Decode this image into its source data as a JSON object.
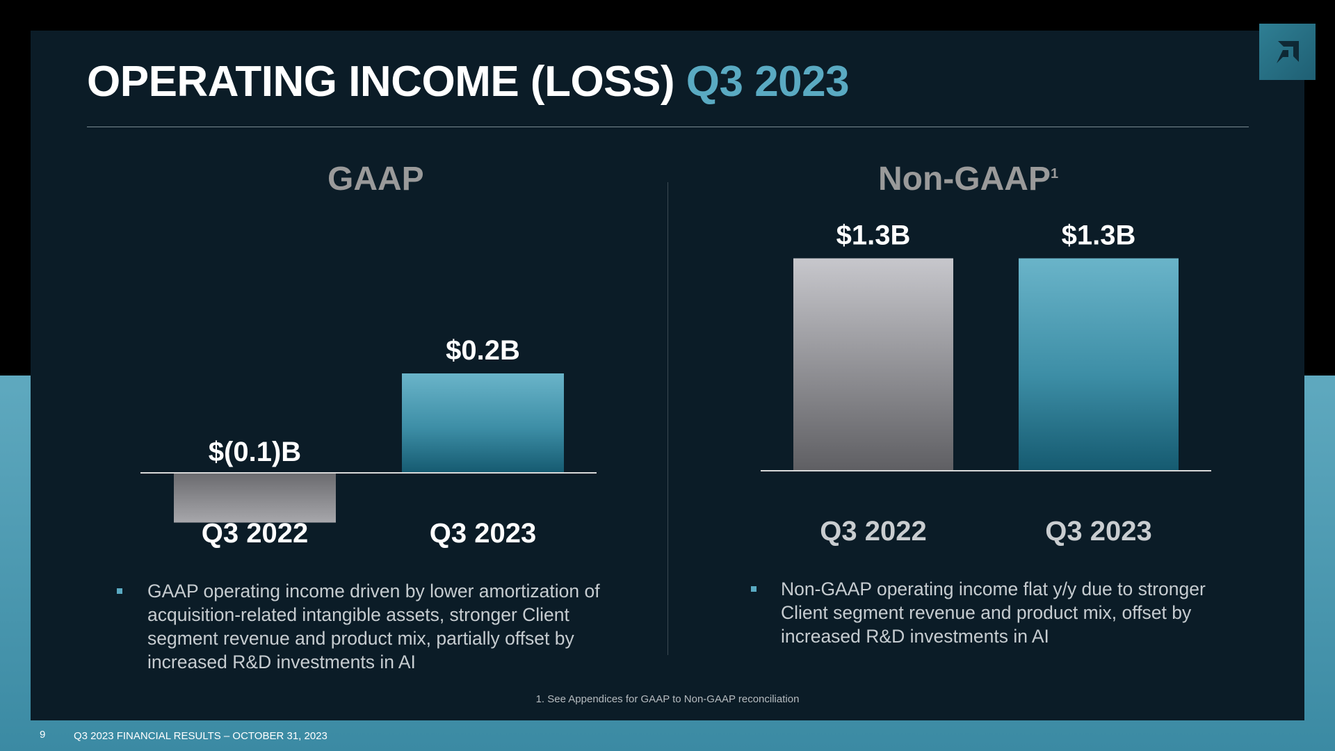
{
  "header": {
    "title_main": "OPERATING INCOME (LOSS)",
    "title_accent": "Q3 2023"
  },
  "sections": {
    "gaap_title": "GAAP",
    "nongaap_title": "Non-GAAP",
    "nongaap_footnote_marker": "1"
  },
  "chart_data": [
    {
      "type": "bar",
      "title": "GAAP",
      "categories": [
        "Q3 2022",
        "Q3 2023"
      ],
      "values": [
        -0.1,
        0.2
      ],
      "value_labels": [
        "$(0.1)B",
        "$0.2B"
      ],
      "unit": "$B",
      "colors": [
        "#8c8c8c",
        "#3f8ea6"
      ]
    },
    {
      "type": "bar",
      "title": "Non-GAAP",
      "categories": [
        "Q3 2022",
        "Q3 2023"
      ],
      "values": [
        1.3,
        1.3
      ],
      "value_labels": [
        "$1.3B",
        "$1.3B"
      ],
      "unit": "$B",
      "colors": [
        "#8c8c8c",
        "#3f8ea6"
      ]
    }
  ],
  "bullets": {
    "gaap": "GAAP operating income driven by lower amortization of acquisition-related intangible assets, stronger Client segment revenue and product mix, partially offset by increased R&D investments in AI",
    "nongaap": "Non-GAAP operating income flat y/y due to stronger Client segment revenue and product mix, offset by increased R&D investments in AI"
  },
  "footnote": "1. See Appendices for GAAP to Non-GAAP reconciliation",
  "footer": {
    "page_number": "9",
    "text": "Q3 2023 FINANCIAL RESULTS – OCTOBER 31, 2023"
  },
  "colors": {
    "accent": "#5aaac2",
    "background": "#0b1c27",
    "gray_bar_top": "#c7c7cc",
    "gray_bar_bottom": "#5f5f63",
    "teal_bar_top": "#6ab4c9",
    "teal_bar_bottom": "#155a70"
  },
  "icons": {
    "logo": "amd-logo-icon"
  }
}
